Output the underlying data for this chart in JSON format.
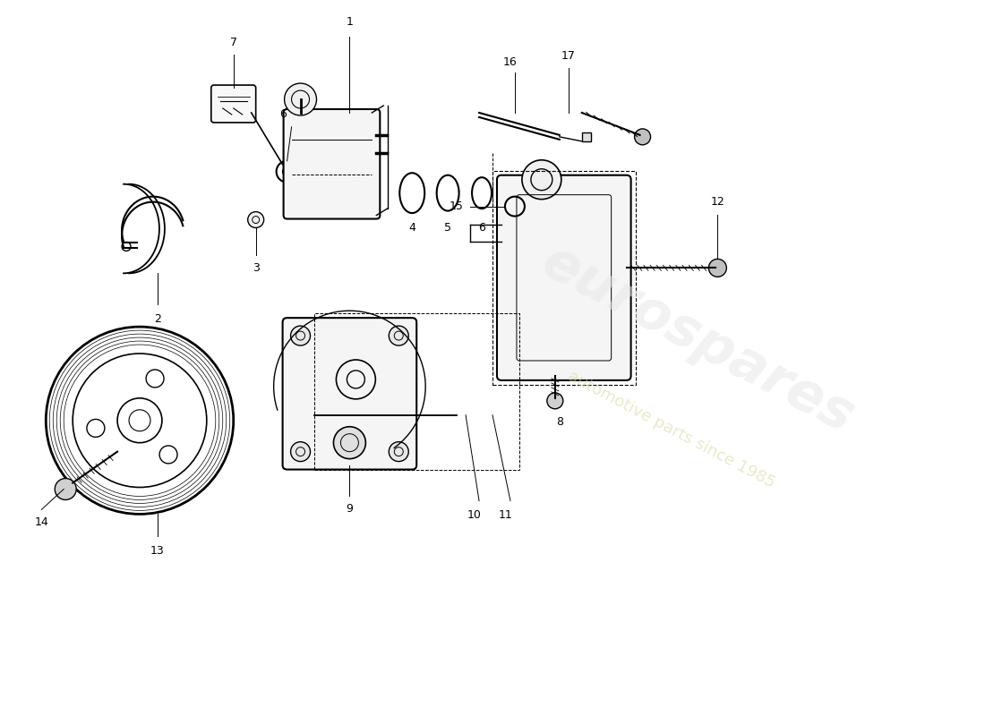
{
  "background_color": "#ffffff",
  "line_color": "#000000",
  "line_width": 1.0,
  "label_fontsize": 9,
  "figsize": [
    11.0,
    8.0
  ],
  "dpi": 100,
  "watermark_main": "eurospares",
  "watermark_sub": "automotive parts since 1985"
}
